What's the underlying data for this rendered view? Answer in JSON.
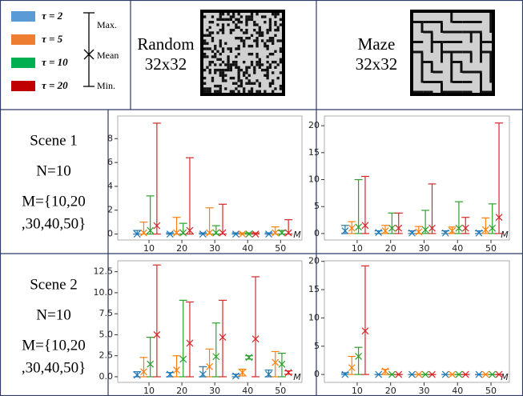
{
  "legend": {
    "series": [
      {
        "name": "τ = 2",
        "color": "#5b9bd5"
      },
      {
        "name": "τ = 5",
        "color": "#ed7d31"
      },
      {
        "name": "τ = 10",
        "color": "#00b050"
      },
      {
        "name": "τ = 20",
        "color": "#c00000"
      }
    ],
    "markers": {
      "max": "Max.",
      "mean": "Mean",
      "min": "Min."
    }
  },
  "header": {
    "columns": [
      [
        "Random",
        "32x32"
      ],
      [
        "Maze",
        "32x32"
      ]
    ]
  },
  "rows": [
    {
      "label": [
        "Scene 1",
        "N=10",
        "M={10,20",
        ",30,40,50}"
      ]
    },
    {
      "label": [
        "Scene 2",
        "N=10",
        "M={10,20",
        ",30,40,50}"
      ]
    }
  ],
  "chart_data": [
    {
      "type": "errorbar",
      "x": [
        10,
        20,
        30,
        40,
        50
      ],
      "xlim": [
        0.5,
        56.5
      ],
      "xticks": [
        10,
        20,
        30,
        40,
        50
      ],
      "xlabel": "M",
      "ylim": [
        -0.5,
        9.9
      ],
      "yticks": [
        0,
        2,
        4,
        6,
        8
      ],
      "series": [
        {
          "color": "#1f77b4",
          "values": [
            0,
            0,
            0,
            0,
            0
          ],
          "max": [
            0.3,
            0.1,
            0.1,
            0.1,
            0.1
          ],
          "min": [
            0,
            0,
            0,
            0,
            0
          ]
        },
        {
          "color": "#ff7f0e",
          "values": [
            0.1,
            0.1,
            0.1,
            0,
            0.1
          ],
          "max": [
            1.0,
            1.4,
            2.2,
            0.1,
            0.6
          ],
          "min": [
            0,
            0,
            0,
            0,
            0
          ]
        },
        {
          "color": "#2ca02c",
          "values": [
            0.3,
            0.1,
            0.1,
            0,
            0.1
          ],
          "max": [
            3.2,
            0.9,
            0.7,
            0.1,
            0.3
          ],
          "min": [
            0,
            0,
            0,
            0,
            0
          ]
        },
        {
          "color": "#d62728",
          "values": [
            0.7,
            0.3,
            0.1,
            0,
            0.1
          ],
          "max": [
            9.3,
            6.4,
            2.5,
            0.1,
            1.2
          ],
          "min": [
            0,
            0,
            0,
            0,
            0
          ]
        }
      ]
    },
    {
      "type": "errorbar",
      "x": [
        10,
        20,
        30,
        40,
        50
      ],
      "xlim": [
        0.2,
        55.5
      ],
      "xticks": [
        10,
        20,
        30,
        40,
        50
      ],
      "xlabel": "M",
      "ylim": [
        -1.2,
        21.8
      ],
      "yticks": [
        0,
        5,
        10,
        15,
        20
      ],
      "series": [
        {
          "color": "#1f77b4",
          "values": [
            0.5,
            0.2,
            0.1,
            0.1,
            0.1
          ],
          "max": [
            1.5,
            0.5,
            0.5,
            0.5,
            0.5
          ],
          "min": [
            0,
            0,
            0,
            0,
            0
          ]
        },
        {
          "color": "#ff7f0e",
          "values": [
            1,
            0.5,
            0.3,
            0.5,
            0.7
          ],
          "max": [
            2.2,
            1.5,
            1.3,
            1.2,
            2.9
          ],
          "min": [
            0,
            0,
            0,
            0,
            0
          ]
        },
        {
          "color": "#2ca02c",
          "values": [
            1.2,
            1,
            0.7,
            1,
            1
          ],
          "max": [
            10,
            3.8,
            4.3,
            5.9,
            5.5
          ],
          "min": [
            0,
            0,
            0,
            0,
            0
          ]
        },
        {
          "color": "#d62728",
          "values": [
            1.5,
            1,
            1,
            1,
            3
          ],
          "max": [
            10.6,
            3.8,
            9.2,
            3.0,
            20.5
          ],
          "min": [
            0,
            0,
            0,
            0,
            0
          ]
        }
      ]
    },
    {
      "type": "errorbar",
      "x": [
        10,
        20,
        30,
        40,
        50
      ],
      "xlim": [
        0.5,
        56.5
      ],
      "xticks": [
        10,
        20,
        30,
        40,
        50
      ],
      "xlabel": "M",
      "ylim": [
        -0.67,
        13.8
      ],
      "yticks": [
        {
          "value": 0,
          "label": "0.0"
        },
        {
          "value": 2.5,
          "label": "2.5"
        },
        {
          "value": 5,
          "label": "5.0"
        },
        {
          "value": 7.5,
          "label": "7.5"
        },
        {
          "value": 10,
          "label": "10.0"
        },
        {
          "value": 12.5,
          "label": "12.5"
        }
      ],
      "series": [
        {
          "color": "#1f77b4",
          "values": [
            0.2,
            0.3,
            0.3,
            0.1,
            0.3
          ],
          "max": [
            0.6,
            0.5,
            1.2,
            0.3,
            0.8
          ],
          "min": [
            0,
            0,
            0,
            0,
            0
          ]
        },
        {
          "color": "#ff7f0e",
          "values": [
            0.6,
            0.8,
            1.2,
            0.5,
            1.7
          ],
          "max": [
            2.3,
            2.5,
            3.3,
            0.9,
            3.0
          ],
          "min": [
            0,
            0,
            0,
            0.1,
            0
          ]
        },
        {
          "color": "#2ca02c",
          "values": [
            1.5,
            2.1,
            2.4,
            2.3,
            1.5
          ],
          "max": [
            4.7,
            9.1,
            6.4,
            2.5,
            2.8
          ],
          "min": [
            0,
            0,
            0,
            2.1,
            0
          ]
        },
        {
          "color": "#d62728",
          "values": [
            5,
            4,
            4.7,
            4.5,
            0.5
          ],
          "max": [
            13.3,
            8.9,
            9.1,
            11.9,
            0.7
          ],
          "min": [
            0,
            0,
            0,
            0,
            0.3
          ]
        }
      ]
    },
    {
      "type": "errorbar",
      "x": [
        10,
        20,
        30,
        40,
        50
      ],
      "xlim": [
        0.2,
        55.5
      ],
      "xticks": [
        10,
        20,
        30,
        40,
        50
      ],
      "xlabel": "M",
      "ylim": [
        -1.4,
        20.1
      ],
      "yticks": [
        0,
        5,
        10,
        15,
        20
      ],
      "series": [
        {
          "color": "#1f77b4",
          "values": [
            0,
            0,
            0,
            0,
            0
          ],
          "max": [
            0.3,
            0,
            0,
            0,
            0
          ],
          "min": [
            0,
            0,
            0,
            0,
            0
          ]
        },
        {
          "color": "#ff7f0e",
          "values": [
            1.2,
            0.6,
            0,
            0,
            0
          ],
          "max": [
            3.2,
            0.9,
            0,
            0,
            0
          ],
          "min": [
            0,
            0,
            0,
            0,
            0
          ]
        },
        {
          "color": "#2ca02c",
          "values": [
            3.2,
            0,
            0,
            0,
            0
          ],
          "max": [
            4.8,
            0,
            0,
            0,
            0
          ],
          "min": [
            0,
            0,
            0,
            0,
            0
          ]
        },
        {
          "color": "#d62728",
          "values": [
            7.7,
            0,
            0,
            0,
            0
          ],
          "max": [
            19.2,
            0,
            0,
            0,
            0
          ],
          "min": [
            0,
            0,
            0,
            0,
            0
          ]
        }
      ]
    }
  ]
}
